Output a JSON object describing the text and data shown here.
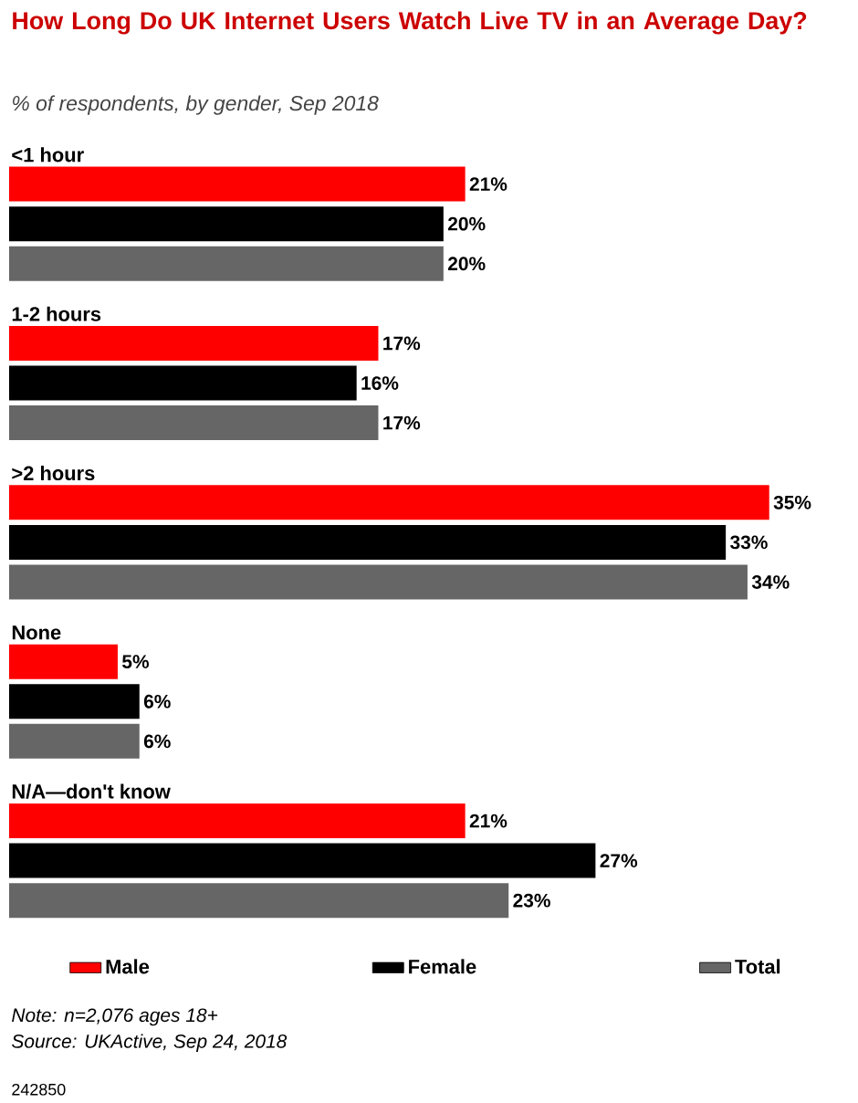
{
  "chart_data": {
    "type": "bar",
    "orientation": "horizontal",
    "title": "How Long Do UK Internet Users Watch Live TV in an Average Day?",
    "subtitle": "% of respondents, by gender, Sep 2018",
    "categories": [
      "<1 hour",
      "1-2 hours",
      ">2 hours",
      "None",
      "N/A—don't know"
    ],
    "series": [
      {
        "name": "Male",
        "color": "#ff0000",
        "values": [
          21,
          17,
          35,
          5,
          21
        ],
        "value_labels": [
          "21%",
          "17%",
          "35%",
          "5%",
          "21%"
        ]
      },
      {
        "name": "Female",
        "color": "#000000",
        "values": [
          20,
          16,
          33,
          6,
          27
        ],
        "value_labels": [
          "20%",
          "16%",
          "33%",
          "6%",
          "27%"
        ]
      },
      {
        "name": "Total",
        "color": "#666666",
        "values": [
          20,
          17,
          34,
          6,
          23
        ],
        "value_labels": [
          "20%",
          "17%",
          "34%",
          "6%",
          "23%"
        ]
      }
    ],
    "legend": "bottom",
    "annotations": [
      "Note: n=2,076 ages 18+",
      "Source: UKActive, Sep 24, 2018",
      "242850"
    ]
  }
}
